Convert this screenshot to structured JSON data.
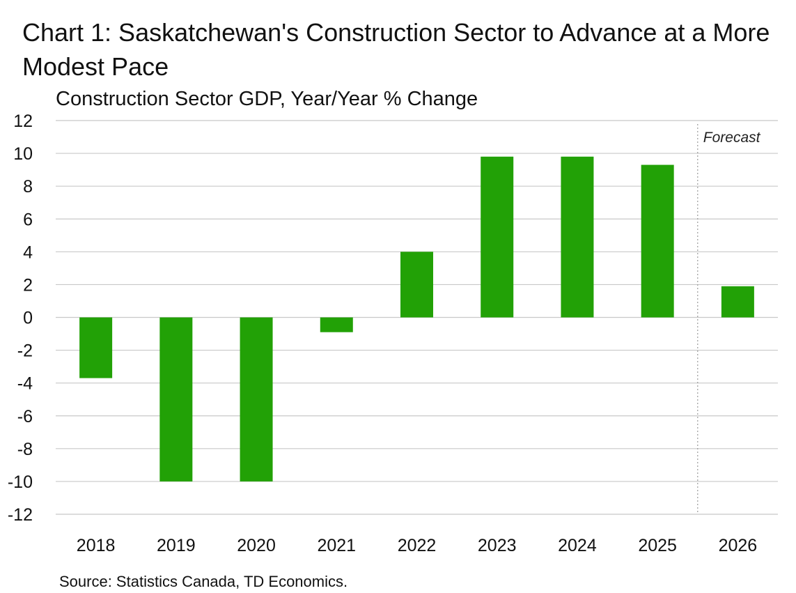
{
  "chart_data": {
    "type": "bar",
    "title": "Chart 1: Saskatchewan's Construction Sector to Advance at a More Modest Pace",
    "subtitle": "Construction Sector GDP, Year/Year % Change",
    "xlabel": "",
    "ylabel": "",
    "categories": [
      "2018",
      "2019",
      "2020",
      "2021",
      "2022",
      "2023",
      "2024",
      "2025",
      "2026"
    ],
    "values": [
      -3.7,
      -10.0,
      -10.0,
      -0.9,
      4.0,
      9.8,
      9.8,
      9.3,
      1.9
    ],
    "ylim": [
      -12,
      12
    ],
    "yticks": [
      "12",
      "10",
      "8",
      "6",
      "4",
      "2",
      "0",
      "-2",
      "-4",
      "-6",
      "-8",
      "-10",
      "-12"
    ],
    "grid": true,
    "legend": "none",
    "bar_color": "#22A106",
    "annotations": [
      {
        "text": "Forecast",
        "after_category": "2025"
      }
    ],
    "source": "Source: Statistics Canada, TD Economics."
  }
}
